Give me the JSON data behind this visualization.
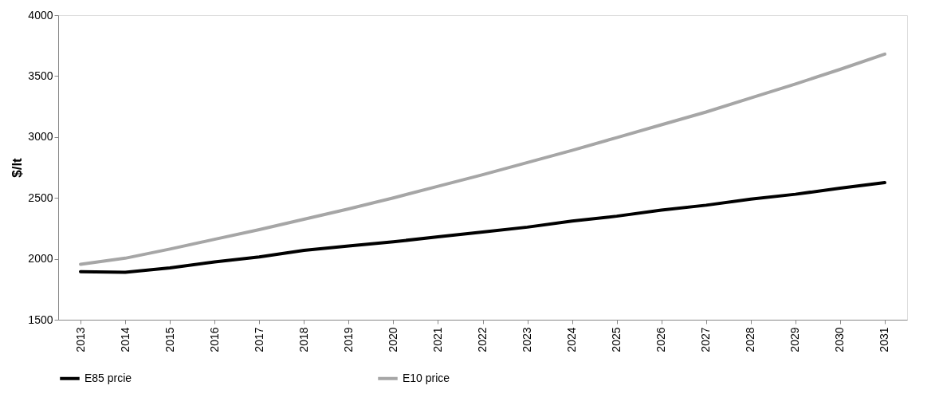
{
  "chart_data": {
    "type": "line",
    "ylabel": "$/lt",
    "categories": [
      "2013",
      "2014",
      "2015",
      "2016",
      "2017",
      "2018",
      "2019",
      "2020",
      "2021",
      "2022",
      "2023",
      "2024",
      "2025",
      "2026",
      "2027",
      "2028",
      "2029",
      "2030",
      "2031"
    ],
    "series": [
      {
        "name": "E85 prcie",
        "color": "#000000",
        "values": [
          1895,
          1890,
          1925,
          1975,
          2015,
          2070,
          2105,
          2140,
          2180,
          2220,
          2260,
          2310,
          2350,
          2400,
          2440,
          2490,
          2530,
          2580,
          2625
        ]
      },
      {
        "name": "E10 price",
        "color": "#a6a6a6",
        "values": [
          1955,
          2005,
          2080,
          2160,
          2240,
          2325,
          2410,
          2500,
          2595,
          2690,
          2790,
          2890,
          2995,
          3100,
          3205,
          3320,
          3435,
          3555,
          3680
        ]
      }
    ],
    "ylim": [
      1500,
      4000
    ],
    "yticks": [
      1500,
      2000,
      2500,
      3000,
      3500,
      4000
    ],
    "grid": false,
    "legend": "bottom",
    "marker": "none",
    "line_style": "solid"
  }
}
